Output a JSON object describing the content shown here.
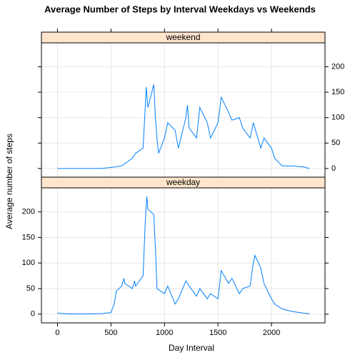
{
  "chart_data": {
    "type": "line",
    "title": "Average Number of Steps by Interval Weekdays vs Weekends",
    "xlabel": "Day Interval",
    "ylabel": "Average number of steps",
    "color": "#0080ff",
    "grid": true,
    "xlim": [
      -150,
      2500
    ],
    "ylim": [
      -17,
      247
    ],
    "xticks": [
      0,
      500,
      1000,
      1500,
      2000
    ],
    "yticks": [
      0,
      50,
      100,
      150,
      200
    ],
    "panels": [
      {
        "name": "weekend",
        "x": [
          0,
          200,
          400,
          500,
          600,
          700,
          730,
          800,
          815,
          830,
          845,
          900,
          915,
          930,
          945,
          1000,
          1030,
          1100,
          1130,
          1200,
          1215,
          1230,
          1300,
          1330,
          1400,
          1430,
          1500,
          1530,
          1600,
          1630,
          1700,
          1730,
          1800,
          1830,
          1900,
          1930,
          2000,
          2030,
          2100,
          2200,
          2300,
          2355
        ],
        "values": [
          0,
          0,
          0,
          2,
          5,
          20,
          30,
          40,
          100,
          160,
          120,
          165,
          100,
          60,
          30,
          60,
          90,
          75,
          40,
          100,
          125,
          80,
          60,
          120,
          90,
          60,
          90,
          140,
          110,
          95,
          100,
          80,
          60,
          90,
          40,
          60,
          40,
          20,
          5,
          5,
          3,
          0
        ]
      },
      {
        "name": "weekday",
        "x": [
          0,
          100,
          200,
          300,
          400,
          500,
          530,
          550,
          600,
          620,
          630,
          700,
          720,
          730,
          800,
          820,
          835,
          845,
          900,
          915,
          930,
          1000,
          1030,
          1100,
          1130,
          1200,
          1230,
          1300,
          1330,
          1400,
          1430,
          1500,
          1530,
          1600,
          1630,
          1700,
          1730,
          1800,
          1830,
          1845,
          1900,
          1930,
          2000,
          2030,
          2100,
          2200,
          2300,
          2355
        ],
        "values": [
          2,
          0.5,
          0.5,
          0.5,
          1,
          3,
          20,
          45,
          55,
          70,
          60,
          50,
          65,
          55,
          75,
          180,
          230,
          205,
          195,
          130,
          50,
          40,
          55,
          20,
          30,
          65,
          55,
          35,
          50,
          30,
          40,
          30,
          85,
          60,
          70,
          40,
          50,
          55,
          100,
          115,
          90,
          60,
          30,
          20,
          10,
          5,
          2,
          1
        ]
      }
    ]
  }
}
